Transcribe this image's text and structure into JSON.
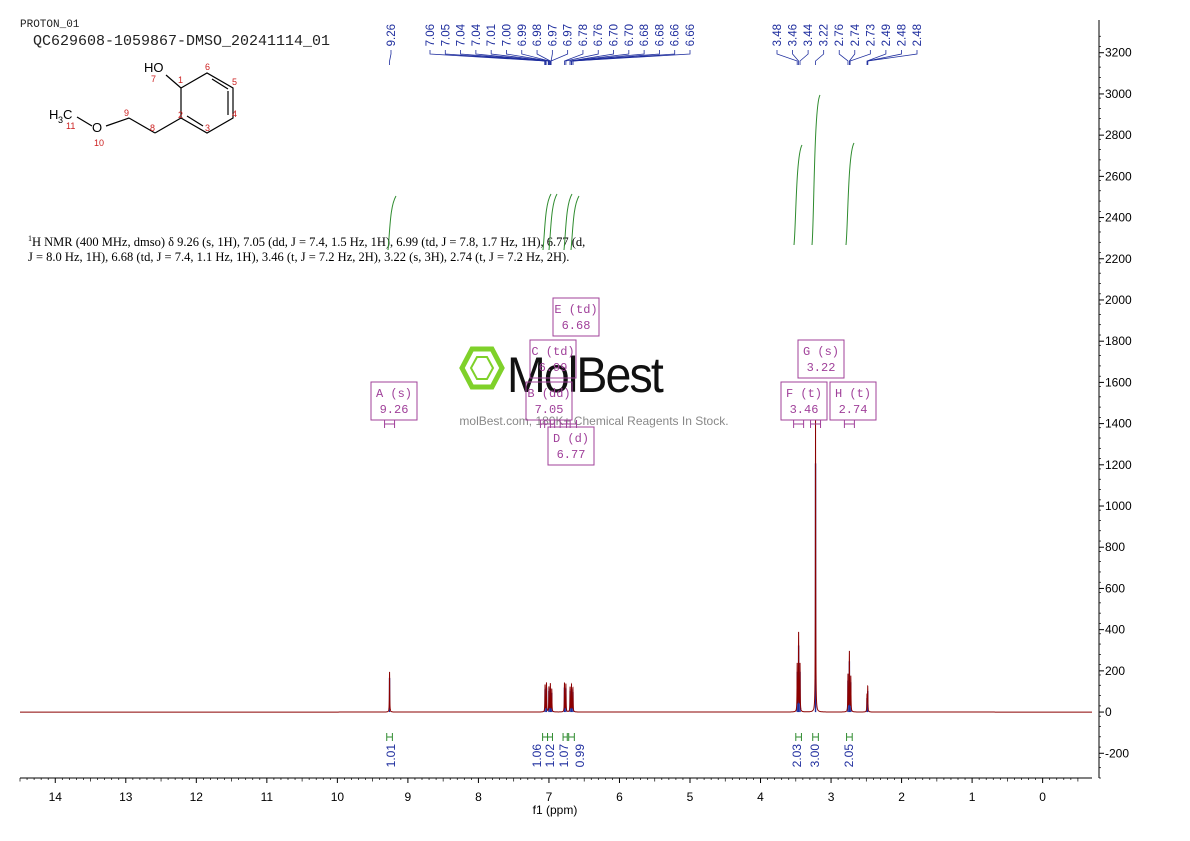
{
  "header": {
    "experiment": "PROTON_01",
    "sample_id": "QC629608-1059867-DMSO_20241114_01"
  },
  "structure": {
    "atoms": [
      "HO",
      "7",
      "1",
      "6",
      "5",
      "4",
      "3",
      "2",
      "8",
      "9",
      "O",
      "10",
      "11"
    ],
    "methyl_label": "H",
    "methyl_sub": "3",
    "methyl_c": "C"
  },
  "description": {
    "nucleus_sup": "1",
    "text": "H NMR (400 MHz, dmso) δ 9.26 (s, 1H), 7.05 (dd, J = 7.4, 1.5 Hz, 1H), 6.99 (td, J = 7.8, 1.7 Hz, 1H), 6.77 (d, J = 8.0 Hz, 1H), 6.68 (td, J = 7.4, 1.1 Hz, 1H), 3.46 (t, J = 7.2 Hz, 2H), 3.22 (s, 3H), 2.74 (t, J = 7.2 Hz, 2H)."
  },
  "watermark": {
    "brand": "MolBest",
    "tagline": "molBest.com, 180K+ Chemical Reagents In Stock."
  },
  "colors": {
    "spectrum": "#8b0000",
    "peak_fill": "#1f2e9e",
    "integral": "#2e8b2e",
    "multiplet_box": "#a0409a",
    "atom_numbers": "#cc2020",
    "watermark_green": "#7fd12a"
  },
  "chart_data": {
    "type": "line",
    "xlabel": "f1 (ppm)",
    "xlim": [
      14.5,
      -0.7
    ],
    "x_ticks": [
      "14",
      "13",
      "12",
      "11",
      "10",
      "9",
      "8",
      "7",
      "6",
      "5",
      "4",
      "3",
      "2",
      "1",
      "0"
    ],
    "ylim": [
      -320,
      3320
    ],
    "y_ticks": [
      "3200",
      "3000",
      "2800",
      "2600",
      "2400",
      "2200",
      "2000",
      "1800",
      "1600",
      "1400",
      "1200",
      "1000",
      "800",
      "600",
      "400",
      "200",
      "0",
      "-200"
    ],
    "peaks": [
      {
        "ppm": 9.26,
        "height": 195
      },
      {
        "ppm": 7.055,
        "height": 130
      },
      {
        "ppm": 7.035,
        "height": 140
      },
      {
        "ppm": 7.0,
        "height": 120
      },
      {
        "ppm": 6.98,
        "height": 135
      },
      {
        "ppm": 6.96,
        "height": 110
      },
      {
        "ppm": 6.78,
        "height": 140
      },
      {
        "ppm": 6.76,
        "height": 135
      },
      {
        "ppm": 6.7,
        "height": 120
      },
      {
        "ppm": 6.68,
        "height": 130
      },
      {
        "ppm": 6.66,
        "height": 115
      },
      {
        "ppm": 3.48,
        "height": 230
      },
      {
        "ppm": 3.46,
        "height": 380
      },
      {
        "ppm": 3.44,
        "height": 230
      },
      {
        "ppm": 3.22,
        "height": 1420
      },
      {
        "ppm": 2.76,
        "height": 180
      },
      {
        "ppm": 2.74,
        "height": 290
      },
      {
        "ppm": 2.72,
        "height": 170
      },
      {
        "ppm": 2.49,
        "height": 80
      },
      {
        "ppm": 2.48,
        "height": 120
      }
    ],
    "peak_labels": [
      {
        "group": "a",
        "items": [
          {
            "ppm": 9.26,
            "text": "9.26"
          }
        ]
      },
      {
        "group": "b",
        "items": [
          {
            "ppm": 7.06,
            "text": "7.06"
          },
          {
            "ppm": 7.05,
            "text": "7.05"
          },
          {
            "ppm": 7.04,
            "text": "7.04"
          },
          {
            "ppm": 7.04,
            "text": "7.04"
          },
          {
            "ppm": 7.01,
            "text": "7.01"
          },
          {
            "ppm": 7.0,
            "text": "7.00"
          },
          {
            "ppm": 6.99,
            "text": "6.99"
          },
          {
            "ppm": 6.98,
            "text": "6.98"
          },
          {
            "ppm": 6.97,
            "text": "6.97"
          },
          {
            "ppm": 6.97,
            "text": "6.97"
          },
          {
            "ppm": 6.78,
            "text": "6.78"
          },
          {
            "ppm": 6.76,
            "text": "6.76"
          },
          {
            "ppm": 6.7,
            "text": "6.70"
          },
          {
            "ppm": 6.7,
            "text": "6.70"
          },
          {
            "ppm": 6.68,
            "text": "6.68"
          },
          {
            "ppm": 6.68,
            "text": "6.68"
          },
          {
            "ppm": 6.66,
            "text": "6.66"
          },
          {
            "ppm": 6.66,
            "text": "6.66"
          }
        ]
      },
      {
        "group": "c",
        "items": [
          {
            "ppm": 3.48,
            "text": "3.48"
          },
          {
            "ppm": 3.46,
            "text": "3.46"
          },
          {
            "ppm": 3.44,
            "text": "3.44"
          },
          {
            "ppm": 3.22,
            "text": "3.22"
          },
          {
            "ppm": 2.76,
            "text": "2.76"
          },
          {
            "ppm": 2.74,
            "text": "2.74"
          },
          {
            "ppm": 2.73,
            "text": "2.73"
          },
          {
            "ppm": 2.49,
            "text": "2.49"
          },
          {
            "ppm": 2.48,
            "text": "2.48"
          },
          {
            "ppm": 2.48,
            "text": "2.48"
          }
        ]
      }
    ],
    "integrals": [
      {
        "from": 9.3,
        "to": 9.22,
        "value": "1.01"
      },
      {
        "from": 7.09,
        "to": 7.02,
        "value": "1.06"
      },
      {
        "from": 7.02,
        "to": 6.95,
        "value": "1.02"
      },
      {
        "from": 6.8,
        "to": 6.74,
        "value": "1.07"
      },
      {
        "from": 6.72,
        "to": 6.64,
        "value": "0.99"
      },
      {
        "from": 3.5,
        "to": 3.42,
        "value": "2.03"
      },
      {
        "from": 3.26,
        "to": 3.18,
        "value": "3.00"
      },
      {
        "from": 2.78,
        "to": 2.7,
        "value": "2.05"
      }
    ],
    "multiplets": [
      {
        "label": "A (s)",
        "shift": "9.26",
        "ppm": 9.26
      },
      {
        "label": "B (dd)",
        "shift": "7.05",
        "ppm": 7.05
      },
      {
        "label": "C (td)",
        "shift": "6.99",
        "ppm": 6.99
      },
      {
        "label": "D (d)",
        "shift": "6.77",
        "ppm": 6.77
      },
      {
        "label": "E (td)",
        "shift": "6.68",
        "ppm": 6.68
      },
      {
        "label": "F (t)",
        "shift": "3.46",
        "ppm": 3.46
      },
      {
        "label": "G (s)",
        "shift": "3.22",
        "ppm": 3.22
      },
      {
        "label": "H (t)",
        "shift": "2.74",
        "ppm": 2.74
      }
    ]
  }
}
